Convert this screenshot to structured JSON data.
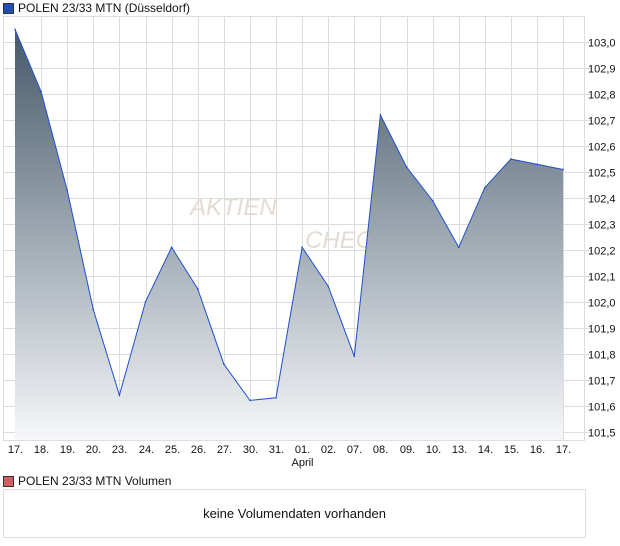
{
  "legend": {
    "price_label": "POLEN 23/33 MTN (Düsseldorf)",
    "price_color": "#1f4fb4",
    "volume_label": "POLEN 23/33 MTN Volumen",
    "volume_color": "#d06060"
  },
  "volume": {
    "empty_message": "keine Volumendaten vorhanden"
  },
  "watermark": "AKTIEN CHECK",
  "chart_data": {
    "type": "area",
    "title": "POLEN 23/33 MTN (Düsseldorf)",
    "categories": [
      "17.",
      "18.",
      "19.",
      "20.",
      "23.",
      "24.",
      "25.",
      "26.",
      "27.",
      "30.",
      "31.",
      "01.",
      "02.",
      "07.",
      "08.",
      "09.",
      "10.",
      "13.",
      "14.",
      "15.",
      "16.",
      "17."
    ],
    "x_sublabel": {
      "under": "01.",
      "text": "April"
    },
    "values": [
      103.05,
      102.81,
      102.43,
      101.97,
      101.64,
      102.0,
      102.21,
      102.05,
      101.76,
      101.62,
      101.63,
      102.21,
      102.06,
      101.79,
      102.72,
      102.52,
      102.39,
      102.21,
      102.44,
      102.55,
      102.53,
      102.51
    ],
    "ylim": [
      101.47,
      103.1
    ],
    "yticks": [
      "103,0",
      "102,9",
      "102,8",
      "102,7",
      "102,6",
      "102,5",
      "102,4",
      "102,3",
      "102,2",
      "102,1",
      "102,0",
      "101,9",
      "101,8",
      "101,7",
      "101,6",
      "101,5"
    ],
    "ytick_values": [
      103.0,
      102.9,
      102.8,
      102.7,
      102.6,
      102.5,
      102.4,
      102.3,
      102.2,
      102.1,
      102.0,
      101.9,
      101.8,
      101.7,
      101.6,
      101.5
    ],
    "grid": true,
    "legend": "top-left"
  }
}
